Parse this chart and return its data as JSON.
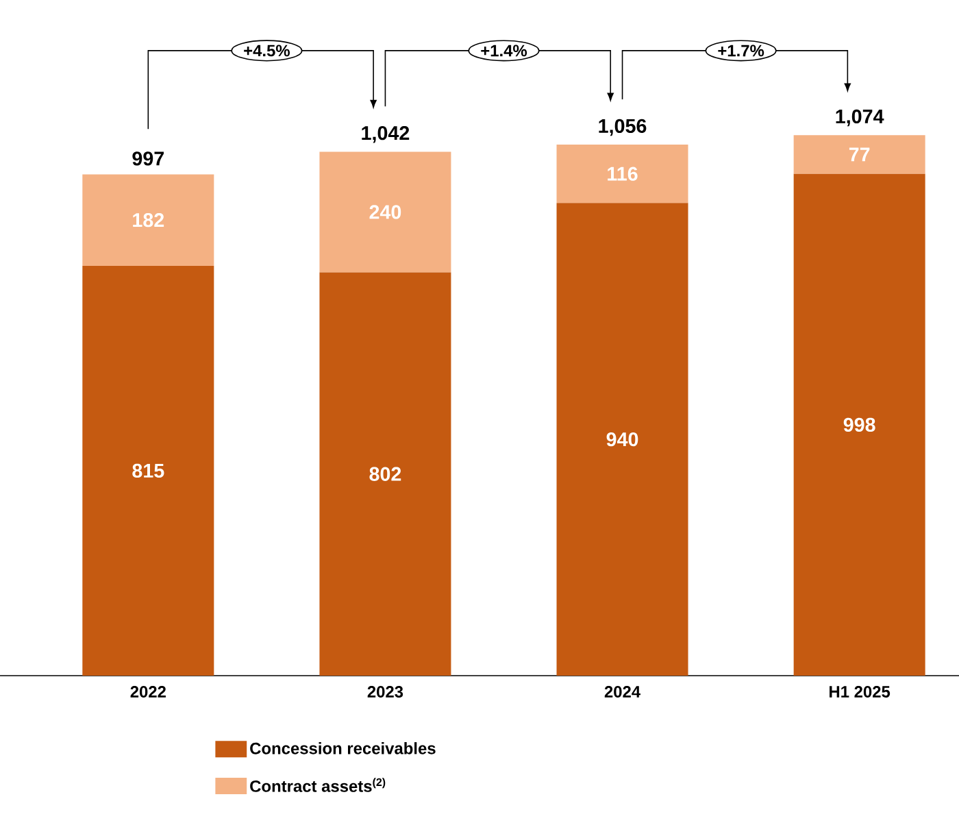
{
  "chart_data": {
    "type": "bar",
    "stacked": true,
    "categories": [
      "2022",
      "2023",
      "2024",
      "H1 2025"
    ],
    "series": [
      {
        "name": "Concession receivables",
        "color": "#c55a11",
        "values": [
          815,
          802,
          940,
          998
        ]
      },
      {
        "name": "Contract assets$^{(2)}$",
        "color": "#f4b183",
        "values": [
          182,
          240,
          116,
          77
        ]
      }
    ],
    "data_labels": true,
    "totals": [
      "997",
      "1,042",
      "1,056",
      "1,074"
    ],
    "annotations": [
      "+4.5%",
      "+1.4%",
      "+1.7%"
    ],
    "legend": "bottom",
    "grid": false
  }
}
